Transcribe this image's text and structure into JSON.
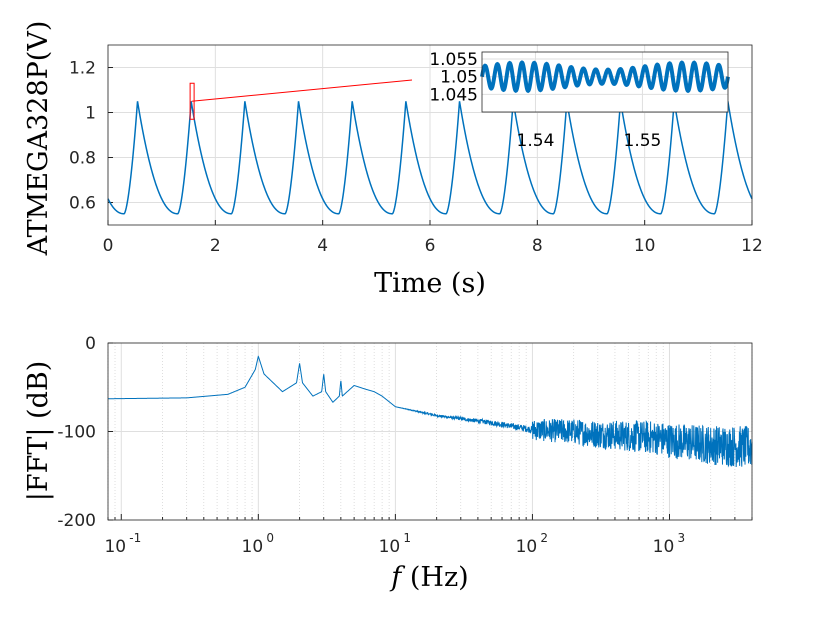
{
  "colors": {
    "series": "#0072bd",
    "annotation": "#ff0000",
    "grid": "#dfdfdf",
    "axis": "#262626"
  },
  "chart_data": [
    {
      "type": "line",
      "title": "",
      "xlabel": "Time (s)",
      "ylabel": "ATMEGA328P(V)",
      "xlim": [
        0,
        12
      ],
      "ylim": [
        0.5,
        1.3
      ],
      "xticks": [
        "0",
        "2",
        "4",
        "6",
        "8",
        "10",
        "12"
      ],
      "yticks": [
        "0.6",
        "0.8",
        "1",
        "1.2"
      ],
      "grid": true,
      "series": [
        {
          "peaks_x": [
            0.55,
            1.55,
            2.55,
            3.55,
            4.55,
            5.55,
            6.55,
            7.55,
            8.55,
            9.55,
            10.55,
            11.55
          ],
          "peak_value": 1.05,
          "trough_value": 0.55,
          "x": [
            0,
            0.3,
            0.55,
            1.0,
            1.3,
            1.55,
            2.0,
            2.3,
            2.55,
            3.0,
            3.3,
            3.55,
            4.0,
            4.3,
            4.55,
            5.0,
            5.3,
            5.55,
            6.0,
            6.3,
            6.55,
            7.0,
            7.3,
            7.55,
            8.0,
            8.3,
            8.55,
            9.0,
            9.3,
            9.55,
            10.0,
            10.3,
            10.55,
            11.0,
            11.3,
            11.55,
            12.0
          ],
          "y": [
            0.69,
            0.55,
            1.05,
            0.7,
            0.55,
            1.05,
            0.7,
            0.55,
            1.05,
            0.7,
            0.55,
            1.05,
            0.7,
            0.55,
            1.05,
            0.7,
            0.55,
            1.05,
            0.7,
            0.55,
            1.05,
            0.7,
            0.55,
            1.05,
            0.7,
            0.55,
            1.05,
            0.7,
            0.55,
            1.05,
            0.7,
            0.55,
            1.05,
            0.7,
            0.55,
            1.05,
            0.66
          ]
        }
      ],
      "zoom_box": {
        "x": [
          1.53,
          1.56
        ],
        "y": [
          0.97,
          1.13
        ]
      },
      "inset": {
        "xlim": [
          1.535,
          1.558
        ],
        "ylim": [
          1.04,
          1.057
        ],
        "xticks": [
          "1.54",
          "1.55"
        ],
        "yticks": [
          "1.055",
          "1.05",
          "1.045"
        ],
        "oscillation": {
          "center": 1.05,
          "amplitude": 0.004,
          "cycles": 20
        }
      }
    },
    {
      "type": "line",
      "title": "",
      "xlabel": "f (Hz)",
      "ylabel": "|FFT| (dB)",
      "xscale": "log",
      "xlim": [
        0.08,
        4000
      ],
      "ylim": [
        -200,
        0
      ],
      "xticks": [
        "10",
        "10",
        "10",
        "10",
        "10"
      ],
      "xtick_exponents": [
        "-1",
        "0",
        "1",
        "2",
        "3"
      ],
      "yticks": [
        "0",
        "-100",
        "-200"
      ],
      "grid": true,
      "series": [
        {
          "x": [
            0.08,
            0.3,
            0.6,
            0.8,
            0.95,
            1.0,
            1.1,
            1.5,
            1.9,
            2.0,
            2.1,
            2.5,
            2.9,
            3.0,
            3.1,
            3.5,
            3.9,
            4.0,
            4.1,
            5.0,
            6.0,
            7.0,
            8.0,
            10.0,
            20.0,
            50.0,
            100.0,
            200.0,
            300.0,
            500.0,
            800.0,
            1000.0,
            2000.0,
            4000.0
          ],
          "y": [
            -63,
            -62,
            -58,
            -50,
            -30,
            -15,
            -35,
            -55,
            -45,
            -23,
            -45,
            -60,
            -55,
            -35,
            -55,
            -67,
            -60,
            -42,
            -60,
            -48,
            -52,
            -55,
            -60,
            -72,
            -82,
            -90,
            -98,
            -100,
            -103,
            -105,
            -107,
            -110,
            -115,
            -118
          ],
          "noise_floor": {
            "from_hz": 100,
            "spread_db": 20
          }
        }
      ]
    }
  ]
}
